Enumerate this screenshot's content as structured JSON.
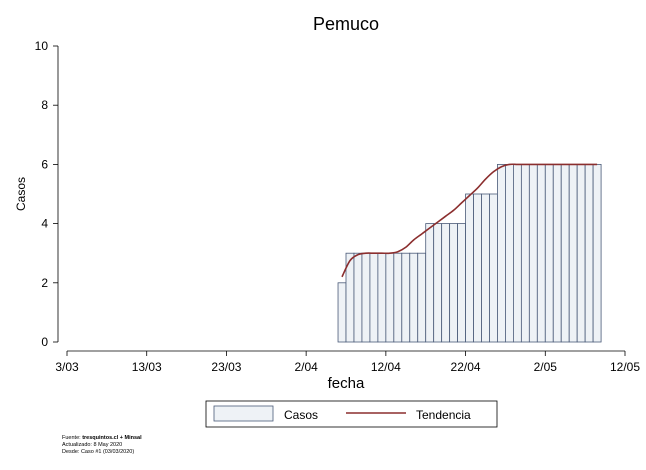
{
  "chart_data": {
    "type": "bar",
    "title": "Pemuco",
    "xlabel": "fecha",
    "ylabel": "Casos",
    "ylim": [
      0,
      10
    ],
    "yticks": [
      0,
      2,
      4,
      6,
      8,
      10
    ],
    "xlim": [
      "2020-03-03",
      "2020-05-12"
    ],
    "xticks": [
      "3/03",
      "13/03",
      "23/03",
      "2/04",
      "12/04",
      "22/04",
      "2/05",
      "12/05"
    ],
    "legend_position": "bottom",
    "bar_start_date": "2020-04-06",
    "series": [
      {
        "name": "Casos",
        "style": "bar",
        "fill": "#eef2f6",
        "stroke": "#4a5a78",
        "values": [
          2,
          3,
          3,
          3,
          3,
          3,
          3,
          3,
          3,
          3,
          3,
          4,
          4,
          4,
          4,
          4,
          5,
          5,
          5,
          5,
          6,
          6,
          6,
          6,
          6,
          6,
          6,
          6,
          6,
          6,
          6,
          6,
          6
        ]
      },
      {
        "name": "Tendencia",
        "style": "line",
        "color": "#8b2e2e",
        "values": [
          2.2,
          2.75,
          2.95,
          3.0,
          3.0,
          3.0,
          3.0,
          3.05,
          3.2,
          3.45,
          3.65,
          3.85,
          4.05,
          4.25,
          4.45,
          4.7,
          4.95,
          5.2,
          5.5,
          5.75,
          5.92,
          6.0,
          6.0,
          6.0,
          6.0,
          6.0,
          6.0,
          6.0,
          6.0,
          6.0,
          6.0,
          6.0,
          6.0
        ]
      }
    ]
  },
  "legend": {
    "casos_label": "Casos",
    "tendencia_label": "Tendencia"
  },
  "source": {
    "prefix": "Fuente: ",
    "bold": "tresquintos.cl + Minsal",
    "updated": "Actualizado: 8 May 2020",
    "since": "Desde: Caso #1  (03/03/2020)"
  }
}
